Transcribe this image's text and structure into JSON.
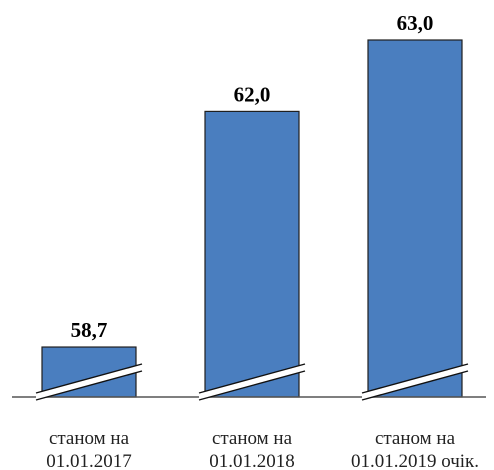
{
  "chart_data": {
    "type": "bar",
    "title": "",
    "xlabel": "",
    "ylabel": "",
    "axis_break": true,
    "grid": false,
    "bar_color": "#4a7ebf",
    "bar_edge_color": "#1f1f1f",
    "categories": [
      {
        "line1": "станом на",
        "line2": "01.01.2017"
      },
      {
        "line1": "станом на",
        "line2": "01.01.2018"
      },
      {
        "line1": "станом на",
        "line2": "01.01.2019 очік."
      }
    ],
    "values": [
      58.7,
      62.0,
      63.0
    ],
    "value_labels": [
      "58,7",
      "62,0",
      "63,0"
    ],
    "ylim": [
      58.0,
      63.0
    ]
  }
}
